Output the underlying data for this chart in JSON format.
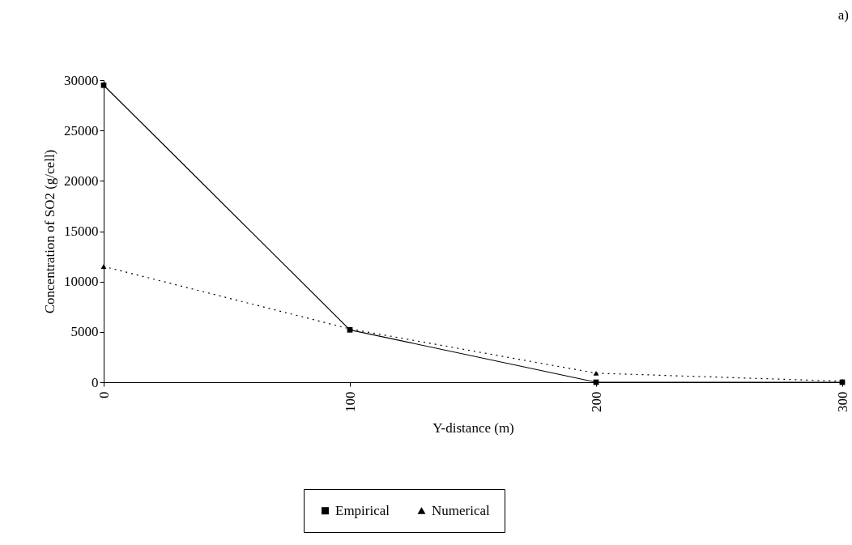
{
  "chart_data": {
    "type": "line",
    "annotations": [
      "a)"
    ],
    "xlabel": "Y-distance (m)",
    "ylabel": "Concentration of SO2 (g/cell)",
    "categories": [
      "0",
      "100",
      "200",
      "300"
    ],
    "series": [
      {
        "name": "Empirical",
        "color": "#000000",
        "marker": "square",
        "line_style": "solid",
        "values": [
          29500,
          5200,
          0,
          0
        ]
      },
      {
        "name": "Numerical",
        "color": "#000000",
        "marker": "triangle",
        "line_style": "dotted",
        "values": [
          11500,
          5300,
          900,
          100
        ]
      }
    ],
    "ylim": [
      0,
      30000
    ],
    "yticks": [
      0,
      5000,
      10000,
      15000,
      20000,
      25000,
      30000
    ],
    "grid": false,
    "legend": "bottom"
  }
}
